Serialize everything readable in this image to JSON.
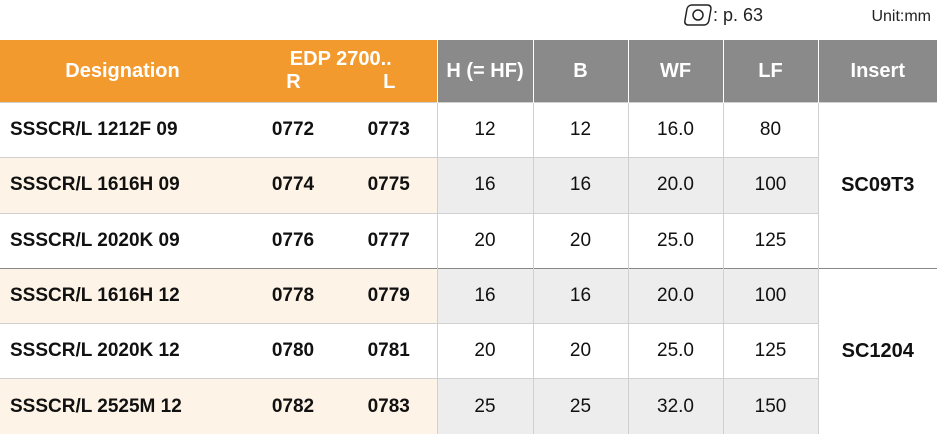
{
  "reference": {
    "page": ": p. 63"
  },
  "unit": "Unit:mm",
  "table": {
    "headers": {
      "designation": "Designation",
      "edp": "EDP 2700..",
      "r": "R",
      "l": "L",
      "h": "H (= HF)",
      "b": "B",
      "wf": "WF",
      "lf": "LF",
      "insert": "Insert"
    },
    "rows": [
      [
        "SSSCR/L 1212F 09",
        "0772",
        "0773",
        12,
        12,
        "16.0",
        80
      ],
      [
        "SSSCR/L 1616H 09",
        "0774",
        "0775",
        16,
        16,
        "20.0",
        100
      ],
      [
        "SSSCR/L 2020K 09",
        "0776",
        "0777",
        20,
        20,
        "25.0",
        125
      ],
      [
        "SSSCR/L 1616H 12",
        "0778",
        "0779",
        16,
        16,
        "20.0",
        100
      ],
      [
        "SSSCR/L 2020K 12",
        "0780",
        "0781",
        20,
        20,
        "25.0",
        125
      ],
      [
        "SSSCR/L 2525M 12",
        "0782",
        "0783",
        25,
        25,
        "32.0",
        150
      ]
    ],
    "inserts": [
      "SC09T3",
      "SC1204"
    ]
  }
}
